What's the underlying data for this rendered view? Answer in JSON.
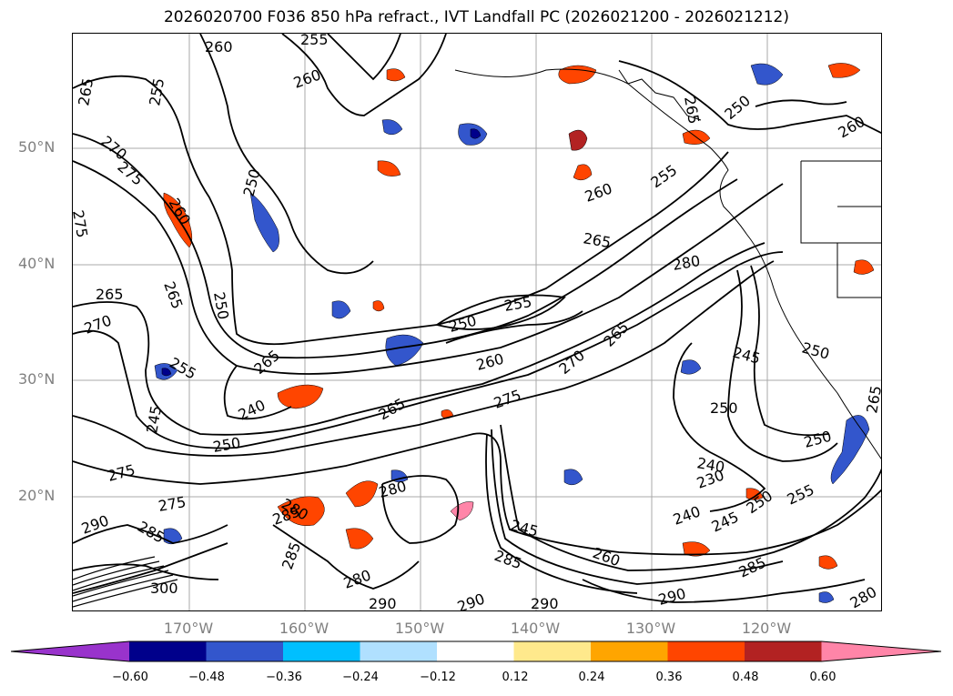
{
  "title": "2026020700 F036 850 hPa refract., IVT Landfall PC (2026021200 - 2026021212)",
  "map": {
    "lat_labels": [
      "50°N",
      "40°N",
      "30°N",
      "20°N"
    ],
    "lon_labels": [
      "170°W",
      "160°W",
      "150°W",
      "140°W",
      "130°W",
      "120°W"
    ],
    "contour_labels": [
      {
        "text": "260"
      },
      {
        "text": "255"
      },
      {
        "text": "260"
      },
      {
        "text": "265"
      },
      {
        "text": "255"
      },
      {
        "text": "270"
      },
      {
        "text": "275"
      },
      {
        "text": "250"
      },
      {
        "text": "260"
      },
      {
        "text": "275"
      },
      {
        "text": "265"
      },
      {
        "text": "265"
      },
      {
        "text": "250"
      },
      {
        "text": "270"
      },
      {
        "text": "255"
      },
      {
        "text": "265"
      },
      {
        "text": "245"
      },
      {
        "text": "240"
      },
      {
        "text": "250"
      },
      {
        "text": "265"
      },
      {
        "text": "250"
      },
      {
        "text": "255"
      },
      {
        "text": "260"
      },
      {
        "text": "275"
      },
      {
        "text": "270"
      },
      {
        "text": "265"
      },
      {
        "text": "255"
      },
      {
        "text": "260"
      },
      {
        "text": "265"
      },
      {
        "text": "280"
      },
      {
        "text": "265"
      },
      {
        "text": "260"
      },
      {
        "text": "250"
      },
      {
        "text": "245"
      },
      {
        "text": "250"
      },
      {
        "text": "250"
      },
      {
        "text": "240"
      },
      {
        "text": "230"
      },
      {
        "text": "240"
      },
      {
        "text": "245"
      },
      {
        "text": "250"
      },
      {
        "text": "255"
      },
      {
        "text": "250"
      },
      {
        "text": "275"
      },
      {
        "text": "275"
      },
      {
        "text": "280"
      },
      {
        "text": "285"
      },
      {
        "text": "280"
      },
      {
        "text": "290"
      },
      {
        "text": "285"
      },
      {
        "text": "285"
      },
      {
        "text": "280"
      },
      {
        "text": "290"
      },
      {
        "text": "290"
      },
      {
        "text": "290"
      },
      {
        "text": "285"
      },
      {
        "text": "300"
      },
      {
        "text": "260"
      },
      {
        "text": "285"
      },
      {
        "text": "290"
      },
      {
        "text": "280"
      },
      {
        "text": "245"
      },
      {
        "text": "265"
      }
    ]
  },
  "colorbar": {
    "colors": [
      "#9933cc",
      "#00008b",
      "#3356cc",
      "#00bfff",
      "#b0e0ff",
      "#ffffff",
      "#ffe98c",
      "#ffa500",
      "#ff4500",
      "#b22222",
      "#ff85a8"
    ],
    "tick_labels": [
      "−0.60",
      "−0.48",
      "−0.36",
      "−0.24",
      "−0.12",
      "0.12",
      "0.24",
      "0.36",
      "0.48",
      "0.60"
    ]
  }
}
